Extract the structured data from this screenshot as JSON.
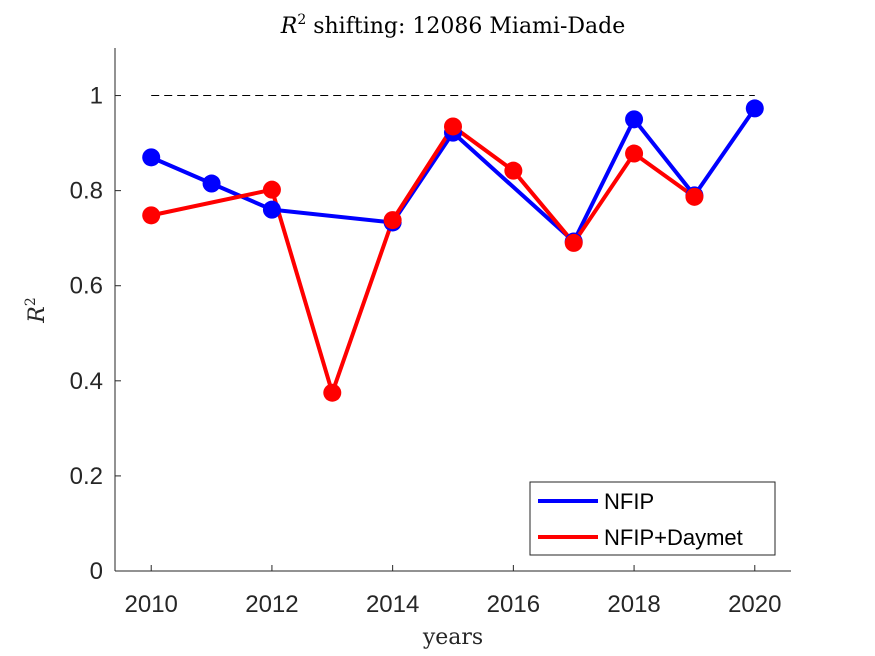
{
  "chart_data": {
    "type": "line",
    "title_prefix": "R",
    "title_sup": "2",
    "title_suffix": " shifting: 12086 Miami-Dade",
    "xlabel": "years",
    "ylabel_base": "R",
    "ylabel_sup": "2",
    "xlim": [
      2009.4,
      2020.6
    ],
    "ylim": [
      0,
      1.1
    ],
    "xticks": [
      2010,
      2012,
      2014,
      2016,
      2018,
      2020
    ],
    "xtick_labels": [
      "2010",
      "2012",
      "2014",
      "2016",
      "2018",
      "2020"
    ],
    "yticks": [
      0,
      0.2,
      0.4,
      0.6,
      0.8,
      1
    ],
    "ytick_labels": [
      "0",
      "0.2",
      "0.4",
      "0.6",
      "0.8",
      "1"
    ],
    "reference_line": {
      "y": 1,
      "x": [
        2010,
        2020
      ],
      "style": "dashed"
    },
    "legend_position": "bottom-right",
    "series": [
      {
        "name": "NFIP",
        "color": "#0000ff",
        "x": [
          2010,
          2011,
          2012,
          2014,
          2015,
          2017,
          2018,
          2019,
          2020
        ],
        "values": [
          0.87,
          0.815,
          0.76,
          0.733,
          0.922,
          0.693,
          0.95,
          0.79,
          0.973
        ]
      },
      {
        "name": "NFIP+Daymet",
        "color": "#ff0000",
        "x": [
          2010,
          2012,
          2013,
          2014,
          2015,
          2016,
          2017,
          2018,
          2019
        ],
        "values": [
          0.748,
          0.802,
          0.375,
          0.738,
          0.935,
          0.842,
          0.69,
          0.878,
          0.787
        ]
      }
    ]
  }
}
